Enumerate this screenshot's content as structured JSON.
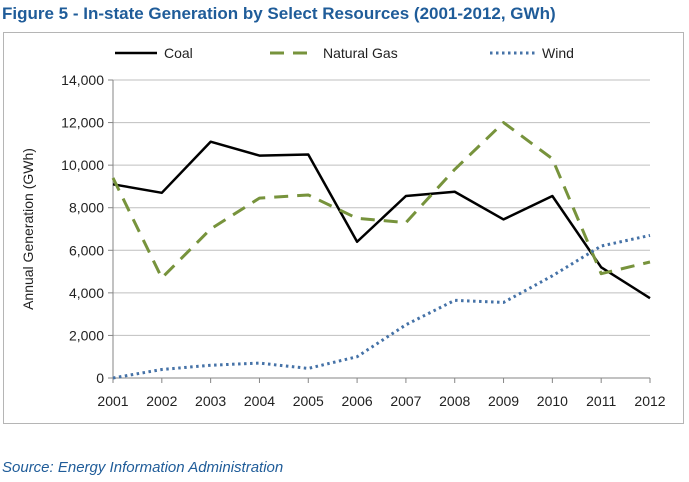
{
  "figure": {
    "title": "Figure 5 - In-state Generation by Select Resources (2001-2012, GWh)",
    "source": "Source: Energy Information Administration"
  },
  "chart_data": {
    "type": "line",
    "title": "",
    "xlabel": "",
    "ylabel": "Annual Generation (GWh)",
    "x": [
      2001,
      2002,
      2003,
      2004,
      2005,
      2006,
      2007,
      2008,
      2009,
      2010,
      2011,
      2012
    ],
    "ylim": [
      0,
      14000
    ],
    "yticks": [
      0,
      2000,
      4000,
      6000,
      8000,
      10000,
      12000,
      14000
    ],
    "ytick_labels": [
      "0",
      "2,000",
      "4,000",
      "6,000",
      "8,000",
      "10,000",
      "12,000",
      "14,000"
    ],
    "grid": "horizontal",
    "legend_position": "top",
    "series": [
      {
        "name": "Coal",
        "color": "#000000",
        "style": "solid",
        "values": [
          9100,
          8700,
          11100,
          10450,
          10500,
          6400,
          8550,
          8750,
          7450,
          8550,
          5200,
          3750
        ]
      },
      {
        "name": "Natural Gas",
        "color": "#77933C",
        "style": "dashed",
        "values": [
          9400,
          4700,
          7000,
          8450,
          8600,
          7500,
          7300,
          9800,
          12000,
          10300,
          4900,
          5450
        ]
      },
      {
        "name": "Wind",
        "color": "#4572A7",
        "style": "dotted",
        "values": [
          0,
          400,
          600,
          700,
          450,
          1000,
          2500,
          3650,
          3550,
          4800,
          6200,
          6700
        ]
      }
    ]
  }
}
